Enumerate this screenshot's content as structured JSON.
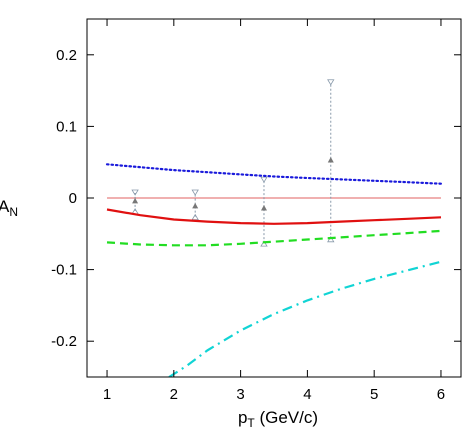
{
  "chart_data": {
    "type": "line",
    "xlabel": "p",
    "xlabel_sub": "T",
    "xlabel_unit": " (GeV/c)",
    "ylabel": "A",
    "ylabel_sub": "N",
    "xlim": [
      0.7,
      6.3
    ],
    "ylim": [
      -0.25,
      0.25
    ],
    "x_ticks": [
      1,
      2,
      3,
      4,
      5,
      6
    ],
    "x_tick_labels": [
      "1",
      "2",
      "3",
      "4",
      "5",
      "6"
    ],
    "y_ticks": [
      -0.2,
      -0.1,
      0,
      0.1,
      0.2
    ],
    "y_tick_labels": [
      "-0.2",
      "-0.1",
      "0",
      "0.1",
      "0.2"
    ],
    "grid": false,
    "series": [
      {
        "style": "dotted",
        "color": "#1a1adb",
        "x": [
          1.0,
          1.5,
          2.0,
          2.5,
          3.0,
          3.5,
          4.0,
          4.5,
          5.0,
          5.5,
          6.0
        ],
        "y": [
          0.047,
          0.043,
          0.039,
          0.036,
          0.033,
          0.03,
          0.028,
          0.026,
          0.024,
          0.022,
          0.02
        ]
      },
      {
        "style": "solid",
        "color": "#e01010",
        "x": [
          1.0,
          1.5,
          2.0,
          2.5,
          3.0,
          3.5,
          4.0,
          4.5,
          5.0,
          5.5,
          6.0
        ],
        "y": [
          -0.016,
          -0.024,
          -0.03,
          -0.033,
          -0.035,
          -0.036,
          -0.035,
          -0.033,
          -0.031,
          -0.029,
          -0.027
        ]
      },
      {
        "style": "dashed",
        "color": "#22dd22",
        "x": [
          1.0,
          1.5,
          2.0,
          2.5,
          3.0,
          3.5,
          4.0,
          4.5,
          5.0,
          5.5,
          6.0
        ],
        "y": [
          -0.062,
          -0.065,
          -0.066,
          -0.066,
          -0.064,
          -0.061,
          -0.058,
          -0.055,
          -0.052,
          -0.049,
          -0.046
        ]
      },
      {
        "style": "dashdot",
        "color": "#11d4d4",
        "x": [
          1.93,
          2.2,
          2.5,
          3.0,
          3.5,
          4.0,
          4.5,
          5.0,
          5.5,
          6.0
        ],
        "y": [
          -0.25,
          -0.234,
          -0.213,
          -0.185,
          -0.162,
          -0.143,
          -0.127,
          -0.113,
          -0.101,
          -0.089
        ]
      }
    ],
    "zero_line": {
      "y": 0,
      "color": "#e06060"
    },
    "data_points": {
      "color": "#777777",
      "points": [
        {
          "x": 1.42,
          "y": -0.004,
          "ylow": -0.018,
          "yhigh": 0.007
        },
        {
          "x": 2.32,
          "y": -0.011,
          "ylow": -0.026,
          "yhigh": 0.007
        },
        {
          "x": 3.35,
          "y": -0.014,
          "ylow": -0.063,
          "yhigh": 0.025
        },
        {
          "x": 4.35,
          "y": 0.053,
          "ylow": -0.057,
          "yhigh": 0.161
        }
      ]
    }
  }
}
